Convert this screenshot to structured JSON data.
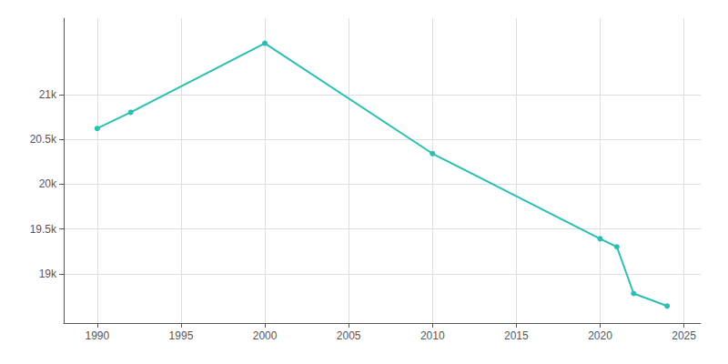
{
  "chart_data": {
    "type": "line",
    "x": [
      1990,
      1992,
      2000,
      2010,
      2020,
      2021,
      2022,
      2024
    ],
    "values": [
      20620,
      20800,
      21570,
      20340,
      19390,
      19300,
      18780,
      18640
    ],
    "color": "#2abfb0",
    "marker": "circle",
    "xlim": [
      1988,
      2026
    ],
    "xticks": [
      1990,
      1995,
      2000,
      2005,
      2010,
      2015,
      2020,
      2025
    ],
    "ylim": [
      18450,
      21850
    ],
    "yticks": [
      {
        "value": 19000,
        "label": "19k"
      },
      {
        "value": 19500,
        "label": "19.5k"
      },
      {
        "value": 20000,
        "label": "20k"
      },
      {
        "value": 20500,
        "label": "20.5k"
      },
      {
        "value": 21000,
        "label": "21k"
      }
    ],
    "grid": true
  }
}
